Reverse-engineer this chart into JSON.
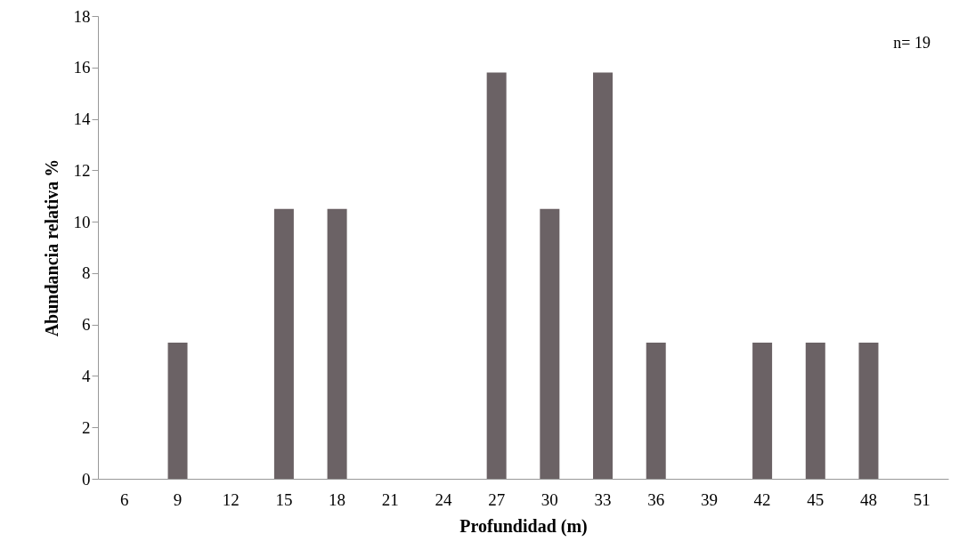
{
  "chart_data": {
    "type": "bar",
    "xlabel": "Profundidad  (m)",
    "ylabel": "Abundancia  relativa %",
    "categories": [
      "6",
      "9",
      "12",
      "15",
      "18",
      "21",
      "24",
      "27",
      "30",
      "33",
      "36",
      "39",
      "42",
      "45",
      "48",
      "51"
    ],
    "values": [
      0,
      5.3,
      0,
      10.5,
      10.5,
      0,
      0,
      15.8,
      10.5,
      15.8,
      5.3,
      0,
      5.3,
      5.3,
      5.3,
      0
    ],
    "color": "#6b6265",
    "ylim": [
      0,
      18
    ],
    "yticks": [
      0,
      2,
      4,
      6,
      8,
      10,
      12,
      14,
      16,
      18
    ],
    "grid": false,
    "annotations": [
      "n= 19"
    ]
  }
}
